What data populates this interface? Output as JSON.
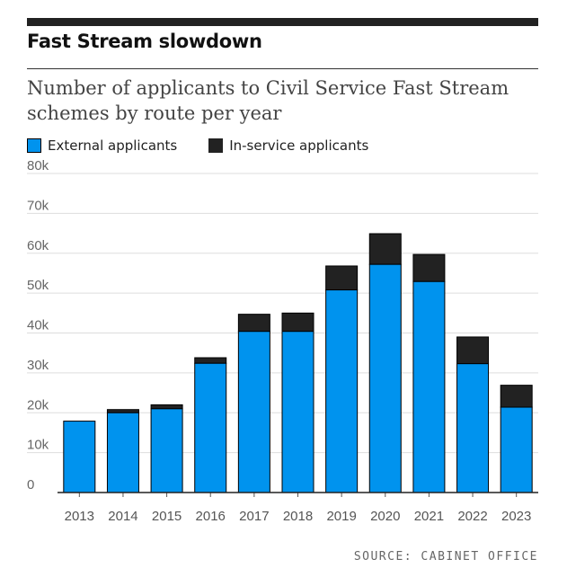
{
  "header": {
    "title": "Fast Stream slowdown",
    "subtitle": "Number of applicants to Civil Service Fast Stream schemes by route per year"
  },
  "legend": {
    "external_label": "External applicants",
    "inservice_label": "In-service applicants"
  },
  "source": "SOURCE: CABINET OFFICE",
  "colors": {
    "external": "#0093ee",
    "inservice": "#222222",
    "grid": "#dddddd"
  },
  "chart_data": {
    "type": "bar",
    "stacked": true,
    "categories": [
      "2013",
      "2014",
      "2015",
      "2016",
      "2017",
      "2018",
      "2019",
      "2020",
      "2021",
      "2022",
      "2023"
    ],
    "series": [
      {
        "name": "External applicants",
        "values": [
          17900,
          20000,
          21000,
          32400,
          40400,
          40400,
          50800,
          57200,
          52900,
          32300,
          21400
        ]
      },
      {
        "name": "In-service applicants",
        "values": [
          0,
          800,
          1000,
          1400,
          4300,
          4600,
          6000,
          7700,
          6800,
          6700,
          5500
        ]
      }
    ],
    "y_ticks": [
      "0",
      "10k",
      "20k",
      "30k",
      "40k",
      "50k",
      "60k",
      "70k",
      "80k"
    ],
    "ylim": [
      0,
      80000
    ],
    "grid": true,
    "legend_position": "top-left"
  }
}
